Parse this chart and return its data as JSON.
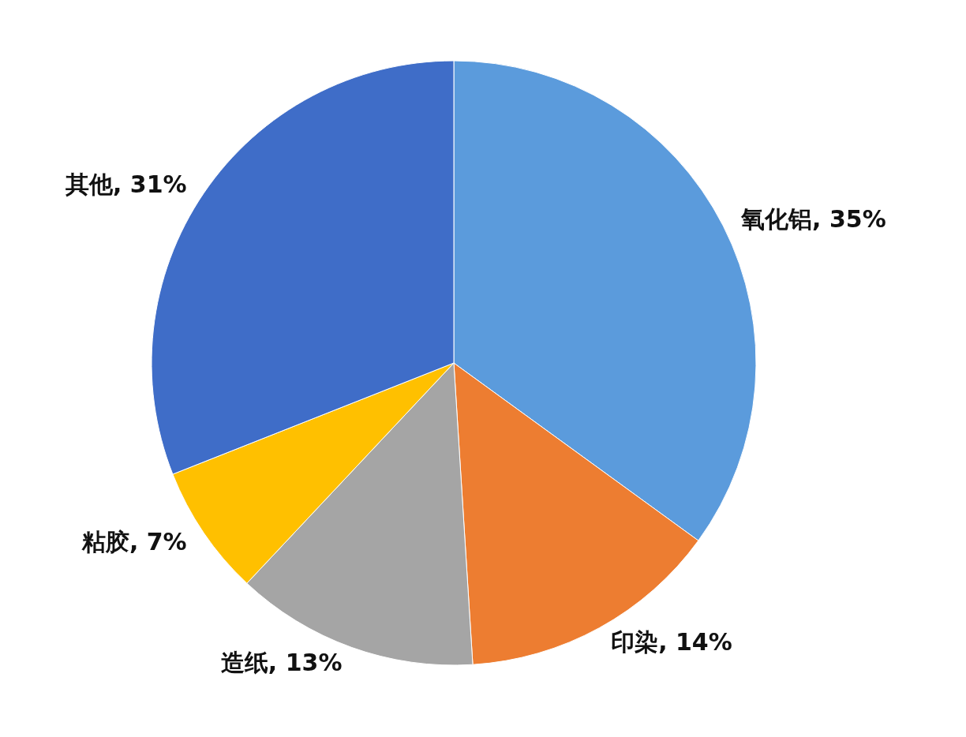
{
  "chart_data": {
    "type": "pie",
    "categories": [
      "氧化铝",
      "印染",
      "造纸",
      "粘胶",
      "其他"
    ],
    "values": [
      35,
      14,
      13,
      7,
      31
    ],
    "value_labels": [
      ", 35%",
      ", 14%",
      ", 13%",
      ", 7%",
      ", 31%"
    ],
    "colors": [
      "#5b9bdc",
      "#ed7d31",
      "#a5a5a5",
      "#ffc000",
      "#3f6dc8"
    ],
    "legend": false
  }
}
